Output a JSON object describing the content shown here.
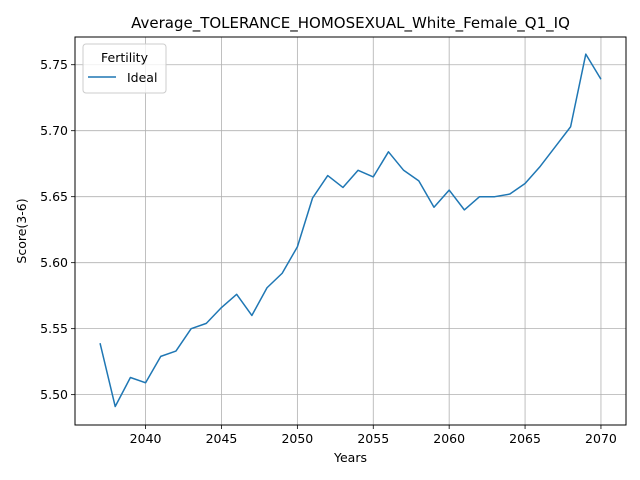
{
  "chart_data": {
    "type": "line",
    "title": "Average_TOLERANCE_HOMOSEXUAL_White_Female_Q1_IQ",
    "xlabel": "Years",
    "ylabel": "Score(3-6)",
    "xlim": [
      2035.35,
      2071.65
    ],
    "ylim": [
      5.477,
      5.771
    ],
    "xticks": [
      2040,
      2045,
      2050,
      2055,
      2060,
      2065,
      2070
    ],
    "yticks": [
      5.5,
      5.55,
      5.6,
      5.65,
      5.7,
      5.75
    ],
    "ytick_labels": [
      "5.50",
      "5.55",
      "5.60",
      "5.65",
      "5.70",
      "5.75"
    ],
    "grid": true,
    "legend": {
      "title": "Fertility",
      "position": "top-left"
    },
    "series": [
      {
        "name": "Ideal",
        "color": "#1f77b4",
        "x": [
          2037,
          2038,
          2039,
          2040,
          2041,
          2042,
          2043,
          2044,
          2045,
          2046,
          2047,
          2048,
          2049,
          2050,
          2051,
          2052,
          2053,
          2054,
          2055,
          2056,
          2057,
          2058,
          2059,
          2060,
          2061,
          2062,
          2063,
          2064,
          2065,
          2066,
          2067,
          2068,
          2069,
          2070
        ],
        "y": [
          5.539,
          5.491,
          5.513,
          5.509,
          5.529,
          5.533,
          5.55,
          5.554,
          5.566,
          5.576,
          5.56,
          5.581,
          5.592,
          5.612,
          5.649,
          5.666,
          5.657,
          5.67,
          5.665,
          5.684,
          5.67,
          5.662,
          5.642,
          5.655,
          5.64,
          5.65,
          5.65,
          5.652,
          5.66,
          5.673,
          5.688,
          5.703,
          5.758,
          5.739
        ]
      }
    ]
  }
}
